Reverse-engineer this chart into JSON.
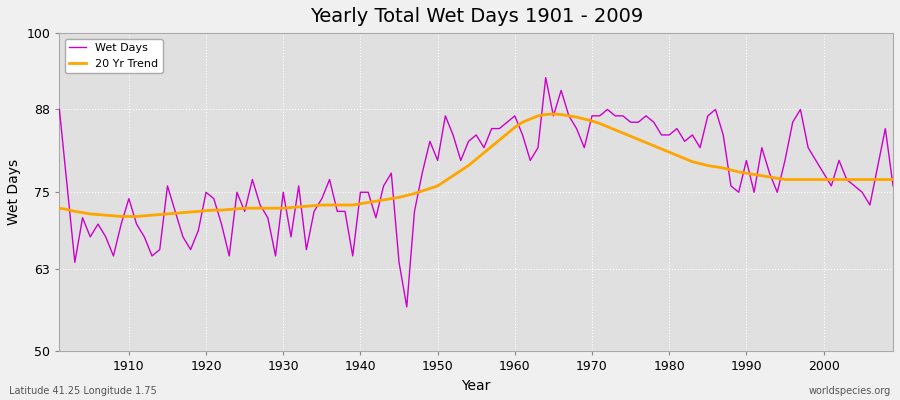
{
  "title": "Yearly Total Wet Days 1901 - 2009",
  "xlabel": "Year",
  "ylabel": "Wet Days",
  "subtitle_left": "Latitude 41.25 Longitude 1.75",
  "subtitle_right": "worldspecies.org",
  "ylim": [
    50,
    100
  ],
  "yticks": [
    50,
    63,
    75,
    88,
    100
  ],
  "xticks": [
    1910,
    1920,
    1930,
    1940,
    1950,
    1960,
    1970,
    1980,
    1990,
    2000
  ],
  "line_color": "#CC00CC",
  "trend_color": "#FFA500",
  "fig_bg_color": "#F0F0F0",
  "plot_bg_color": "#E0E0E0",
  "grid_color": "#FFFFFF",
  "legend_entries": [
    "Wet Days",
    "20 Yr Trend"
  ],
  "years": [
    1901,
    1902,
    1903,
    1904,
    1905,
    1906,
    1907,
    1908,
    1909,
    1910,
    1911,
    1912,
    1913,
    1914,
    1915,
    1916,
    1917,
    1918,
    1919,
    1920,
    1921,
    1922,
    1923,
    1924,
    1925,
    1926,
    1927,
    1928,
    1929,
    1930,
    1931,
    1932,
    1933,
    1934,
    1935,
    1936,
    1937,
    1938,
    1939,
    1940,
    1941,
    1942,
    1943,
    1944,
    1945,
    1946,
    1947,
    1948,
    1949,
    1950,
    1951,
    1952,
    1953,
    1954,
    1955,
    1956,
    1957,
    1958,
    1959,
    1960,
    1961,
    1962,
    1963,
    1964,
    1965,
    1966,
    1967,
    1968,
    1969,
    1970,
    1971,
    1972,
    1973,
    1974,
    1975,
    1976,
    1977,
    1978,
    1979,
    1980,
    1981,
    1982,
    1983,
    1984,
    1985,
    1986,
    1987,
    1988,
    1989,
    1990,
    1991,
    1992,
    1993,
    1994,
    1995,
    1996,
    1997,
    1998,
    1999,
    2000,
    2001,
    2002,
    2003,
    2004,
    2005,
    2006,
    2007,
    2008,
    2009
  ],
  "wet_days": [
    88,
    76,
    64,
    71,
    68,
    70,
    68,
    65,
    70,
    74,
    70,
    68,
    65,
    66,
    76,
    72,
    68,
    66,
    69,
    75,
    74,
    70,
    65,
    75,
    72,
    77,
    73,
    71,
    65,
    75,
    68,
    76,
    66,
    72,
    74,
    77,
    72,
    72,
    65,
    75,
    75,
    71,
    76,
    78,
    64,
    57,
    72,
    78,
    83,
    80,
    87,
    84,
    80,
    83,
    84,
    82,
    85,
    85,
    86,
    87,
    84,
    80,
    82,
    93,
    87,
    91,
    87,
    85,
    82,
    87,
    87,
    88,
    87,
    87,
    86,
    86,
    87,
    86,
    84,
    84,
    85,
    83,
    84,
    82,
    87,
    88,
    84,
    76,
    75,
    80,
    75,
    82,
    78,
    75,
    80,
    86,
    88,
    82,
    80,
    78,
    76,
    80,
    77,
    76,
    75,
    73,
    79,
    85,
    76
  ],
  "trend_years": [
    1901,
    1902,
    1903,
    1904,
    1905,
    1906,
    1907,
    1908,
    1909,
    1910,
    1911,
    1912,
    1913,
    1914,
    1915,
    1916,
    1917,
    1918,
    1919,
    1920,
    1921,
    1922,
    1923,
    1924,
    1925,
    1926,
    1927,
    1928,
    1929,
    1930,
    1931,
    1932,
    1933,
    1934,
    1935,
    1936,
    1937,
    1938,
    1939,
    1940,
    1941,
    1942,
    1943,
    1944,
    1945,
    1946,
    1947,
    1948,
    1949,
    1950,
    1951,
    1952,
    1953,
    1954,
    1955,
    1956,
    1957,
    1958,
    1959,
    1960,
    1961,
    1962,
    1963,
    1964,
    1965,
    1966,
    1967,
    1968,
    1969,
    1970,
    1971,
    1972,
    1973,
    1974,
    1975,
    1976,
    1977,
    1978,
    1979,
    1980,
    1981,
    1982,
    1983,
    1984,
    1985,
    1986,
    1987,
    1988,
    1989,
    1990,
    1991,
    1992,
    1993,
    1994,
    1995,
    1996,
    1997,
    1998,
    1999,
    2000,
    2001,
    2002,
    2003,
    2004,
    2005,
    2006,
    2007,
    2008,
    2009
  ],
  "trend_values": [
    72.5,
    72.3,
    72.0,
    71.8,
    71.6,
    71.5,
    71.4,
    71.3,
    71.2,
    71.2,
    71.2,
    71.3,
    71.4,
    71.5,
    71.6,
    71.7,
    71.8,
    71.9,
    72.0,
    72.1,
    72.2,
    72.2,
    72.3,
    72.4,
    72.5,
    72.5,
    72.5,
    72.5,
    72.5,
    72.5,
    72.6,
    72.7,
    72.8,
    72.9,
    73.0,
    73.0,
    73.0,
    73.0,
    73.0,
    73.2,
    73.4,
    73.6,
    73.8,
    74.0,
    74.2,
    74.5,
    74.8,
    75.2,
    75.6,
    76.0,
    76.8,
    77.6,
    78.4,
    79.2,
    80.2,
    81.2,
    82.2,
    83.2,
    84.2,
    85.2,
    86.0,
    86.5,
    87.0,
    87.2,
    87.3,
    87.2,
    87.0,
    86.8,
    86.5,
    86.2,
    85.8,
    85.3,
    84.8,
    84.3,
    83.8,
    83.3,
    82.8,
    82.3,
    81.8,
    81.3,
    80.8,
    80.3,
    79.8,
    79.5,
    79.2,
    79.0,
    78.8,
    78.5,
    78.2,
    78.0,
    77.8,
    77.6,
    77.4,
    77.2,
    77.0,
    77.0,
    77.0,
    77.0,
    77.0,
    77.0,
    77.0,
    77.0,
    77.0,
    77.0,
    77.0,
    77.0,
    77.0,
    77.0,
    77.0
  ]
}
